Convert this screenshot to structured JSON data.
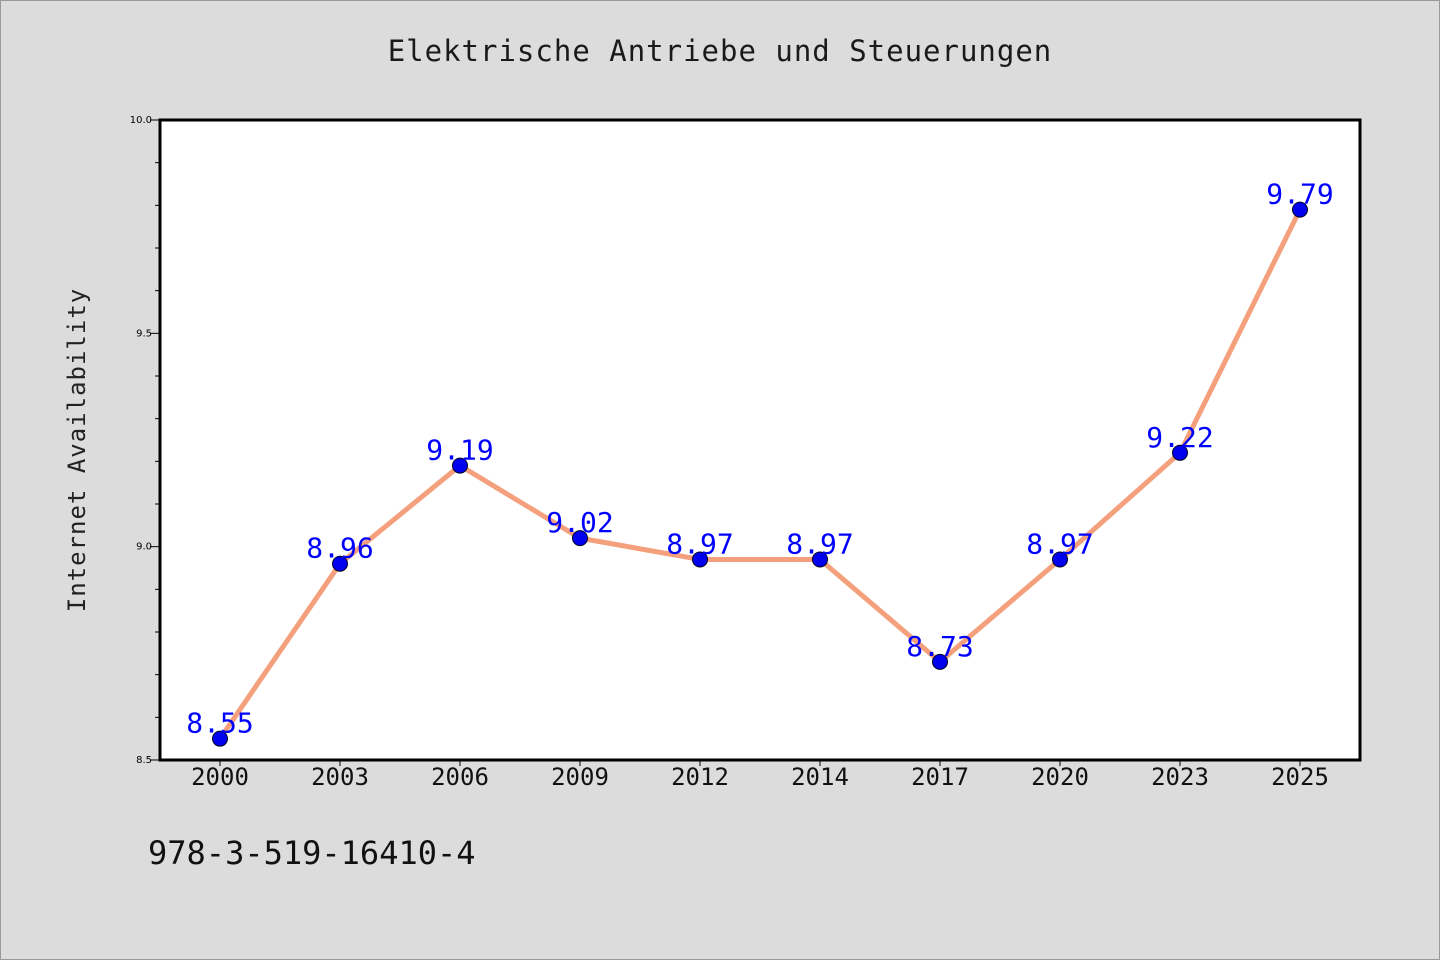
{
  "title": "Elektrische Antriebe und Steuerungen",
  "footer_text": "978-3-519-16410-4",
  "colors": {
    "background": "#dcdcdc",
    "plot_background": "#ffffff",
    "line": "#f4a07c",
    "marker": "#0000ee",
    "data_label": "#0000ff"
  },
  "chart_data": {
    "type": "line",
    "categories": [
      "2000",
      "2003",
      "2006",
      "2009",
      "2012",
      "2014",
      "2017",
      "2020",
      "2023",
      "2025"
    ],
    "series": [
      {
        "values": [
          8.55,
          8.96,
          9.19,
          9.02,
          8.97,
          8.97,
          8.73,
          8.97,
          9.22,
          9.79
        ]
      }
    ],
    "data_labels": [
      "8.55",
      "8.96",
      "9.19",
      "9.02",
      "8.97",
      "8.97",
      "8.73",
      "8.97",
      "9.22",
      "9.79"
    ],
    "title": "Elektrische Antriebe und Steuerungen",
    "xlabel": "",
    "ylabel": "Internet Availability",
    "ylim": [
      8.5,
      10.0
    ],
    "yticks": [
      "8.5",
      "9.0",
      "9.5",
      "10.0"
    ],
    "grid": false,
    "legend": "none"
  }
}
